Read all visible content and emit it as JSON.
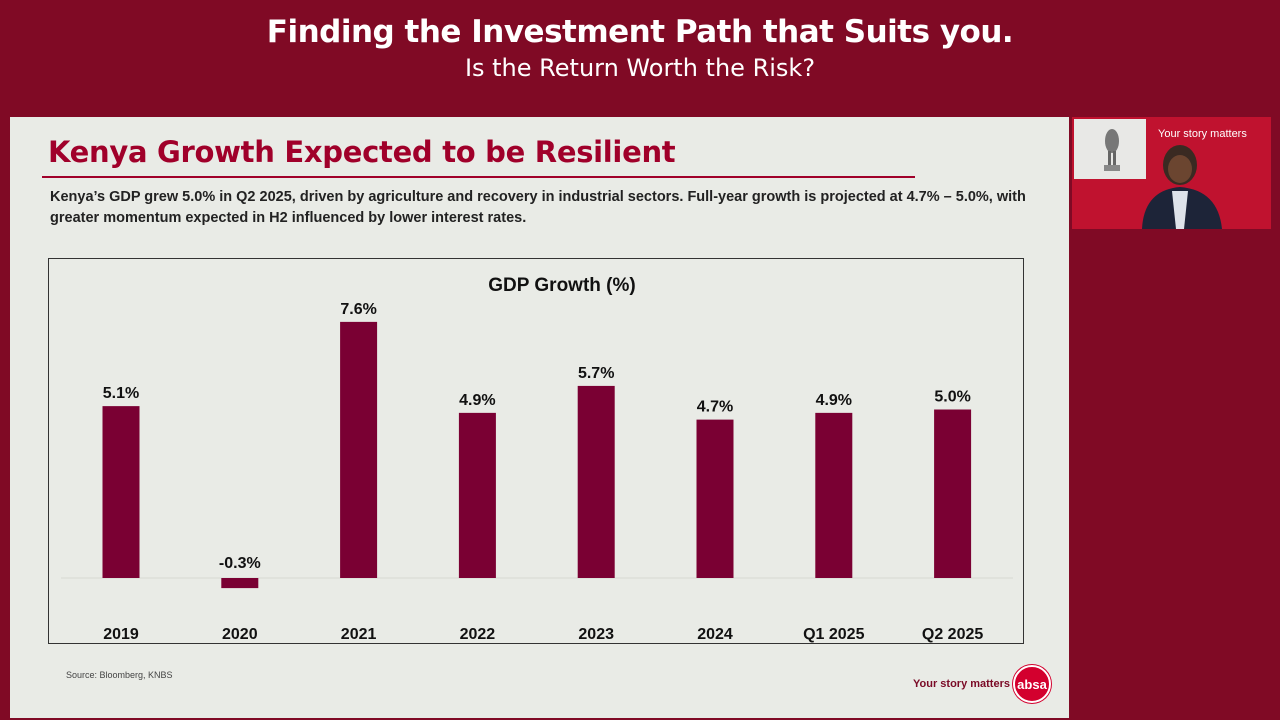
{
  "header": {
    "title": "Finding the Investment Path that Suits you.",
    "subtitle": "Is the Return Worth the Risk?"
  },
  "slide": {
    "title": "Kenya Growth Expected to be Resilient",
    "lead": "Kenya’s GDP grew 5.0% in Q2 2025, driven by agriculture and recovery in industrial sectors. Full-year growth is projected at 4.7% – 5.0%, with greater momentum expected in H2 influenced by lower interest rates.",
    "source": "Source: Bloomberg, KNBS",
    "tagline": "Your story matters",
    "logo": "absa"
  },
  "video": {
    "backdrop_text": "Your story matters"
  },
  "colors": {
    "background": "#800a25",
    "bar": "#7a0033",
    "accent": "#a0002a"
  },
  "chart_data": {
    "type": "bar",
    "title": "GDP Growth (%)",
    "categories": [
      "2019",
      "2020",
      "2021",
      "2022",
      "2023",
      "2024",
      "Q1 2025",
      "Q2 2025"
    ],
    "values": [
      5.1,
      -0.3,
      7.6,
      4.9,
      5.7,
      4.7,
      4.9,
      5.0
    ],
    "labels": [
      "5.1%",
      "-0.3%",
      "7.6%",
      "4.9%",
      "5.7%",
      "4.7%",
      "4.9%",
      "5.0%"
    ],
    "xlabel": "",
    "ylabel": "",
    "grid": false,
    "legend": "none"
  }
}
